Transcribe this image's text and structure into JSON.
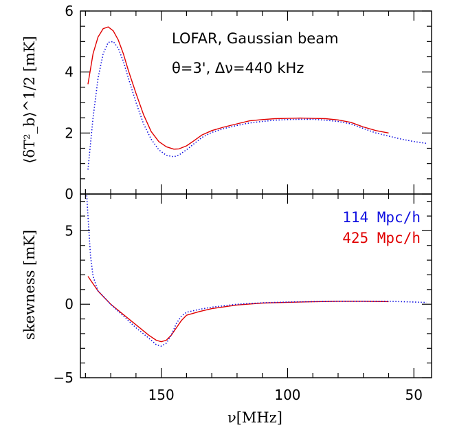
{
  "chart_data": [
    {
      "type": "line",
      "panel": "top",
      "ylabel": "⟨δT²_b⟩^1/2 [mK]",
      "xlim": [
        182,
        43
      ],
      "ylim": [
        0,
        6
      ],
      "yticks": [
        0,
        2,
        4,
        6
      ],
      "annotations": [
        "LOFAR, Gaussian beam",
        "θ=3', Δν=440 kHz"
      ],
      "series": [
        {
          "name": "425 Mpc/h",
          "color": "#e00000",
          "style": "solid",
          "x": [
            179,
            177,
            175,
            173,
            171,
            169,
            167,
            165,
            163,
            160,
            157,
            154,
            151,
            148,
            145,
            143,
            140,
            137,
            134,
            130,
            125,
            120,
            115,
            110,
            105,
            100,
            95,
            90,
            85,
            80,
            75,
            70,
            65,
            60
          ],
          "y": [
            3.6,
            4.6,
            5.15,
            5.42,
            5.48,
            5.35,
            5.05,
            4.6,
            4.05,
            3.3,
            2.6,
            2.05,
            1.72,
            1.55,
            1.47,
            1.48,
            1.58,
            1.75,
            1.93,
            2.08,
            2.2,
            2.3,
            2.4,
            2.44,
            2.47,
            2.48,
            2.49,
            2.48,
            2.47,
            2.43,
            2.35,
            2.2,
            2.08,
            2.0
          ]
        },
        {
          "name": "114 Mpc/h",
          "color": "#1010e0",
          "style": "dotted",
          "x": [
            179,
            177,
            175,
            173,
            171,
            169,
            167,
            165,
            163,
            160,
            157,
            154,
            151,
            148,
            145,
            143,
            140,
            137,
            134,
            130,
            125,
            120,
            115,
            110,
            105,
            100,
            95,
            90,
            85,
            80,
            75,
            70,
            65,
            60,
            55,
            50,
            45
          ],
          "y": [
            0.8,
            2.5,
            3.8,
            4.6,
            4.97,
            5.0,
            4.78,
            4.35,
            3.8,
            3.0,
            2.3,
            1.8,
            1.45,
            1.27,
            1.22,
            1.28,
            1.45,
            1.65,
            1.85,
            2.02,
            2.15,
            2.25,
            2.33,
            2.38,
            2.42,
            2.44,
            2.45,
            2.45,
            2.42,
            2.38,
            2.3,
            2.15,
            2.0,
            1.9,
            1.8,
            1.72,
            1.66
          ]
        }
      ]
    },
    {
      "type": "line",
      "panel": "bottom",
      "ylabel": "skewness [mK]",
      "xlabel": "ν[MHz]",
      "xlim": [
        182,
        43
      ],
      "ylim": [
        -5,
        7.5
      ],
      "yticks": [
        -5,
        0,
        5
      ],
      "xticks": [
        150,
        100,
        50
      ],
      "legend_placement": "top-right",
      "legend": [
        {
          "text": "114 Mpc/h",
          "color": "#1010e0"
        },
        {
          "text": "425 Mpc/h",
          "color": "#e00000"
        }
      ],
      "series": [
        {
          "name": "425 Mpc/h",
          "color": "#e00000",
          "style": "solid",
          "x": [
            179,
            175,
            170,
            165,
            160,
            155,
            152,
            150,
            148,
            146,
            144,
            142,
            140,
            135,
            130,
            120,
            110,
            100,
            90,
            80,
            70,
            60
          ],
          "y": [
            1.9,
            0.9,
            0.0,
            -0.7,
            -1.4,
            -2.1,
            -2.45,
            -2.55,
            -2.45,
            -2.1,
            -1.6,
            -1.1,
            -0.75,
            -0.5,
            -0.3,
            -0.05,
            0.08,
            0.13,
            0.17,
            0.2,
            0.2,
            0.18
          ]
        },
        {
          "name": "114 Mpc/h",
          "color": "#1010e0",
          "style": "dotted",
          "x": [
            179.5,
            179,
            178.5,
            178,
            177,
            175,
            170,
            165,
            160,
            155,
            152,
            150,
            148,
            146,
            144,
            142,
            140,
            135,
            130,
            120,
            110,
            100,
            90,
            80,
            70,
            60,
            50,
            45
          ],
          "y": [
            7.4,
            6.0,
            4.6,
            3.3,
            1.9,
            0.9,
            0.0,
            -0.8,
            -1.6,
            -2.3,
            -2.75,
            -2.85,
            -2.65,
            -2.1,
            -1.3,
            -0.8,
            -0.55,
            -0.35,
            -0.2,
            0.0,
            0.1,
            0.15,
            0.18,
            0.2,
            0.2,
            0.2,
            0.15,
            0.12
          ]
        }
      ]
    }
  ]
}
